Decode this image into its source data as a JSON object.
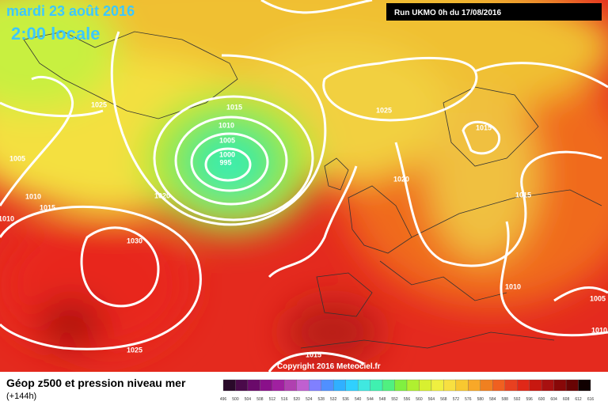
{
  "title": "mardi 23 août 2016",
  "subtitle": "2:00 locale",
  "run_info": "Run UKMO 0h du 17/08/2016",
  "copyright": "Copyright 2016 Meteociel.fr",
  "legend": {
    "title": "Géop z500 et pression niveau mer",
    "subtitle": "(+144h)",
    "scale_labels": [
      "496",
      "500",
      "504",
      "508",
      "512",
      "516",
      "520",
      "524",
      "528",
      "532",
      "536",
      "540",
      "544",
      "548",
      "552",
      "556",
      "560",
      "564",
      "568",
      "572",
      "576",
      "580",
      "584",
      "588",
      "592",
      "596",
      "600",
      "604",
      "608",
      "612",
      "616"
    ]
  },
  "isobar_labels": [
    "1025",
    "1005",
    "1010",
    "1015",
    "1010",
    "1030",
    "1025",
    "1015",
    "1010",
    "1005",
    "1000",
    "995",
    "1020",
    "1025",
    "1020",
    "1015",
    "1015",
    "1010",
    "1005",
    "1010",
    "1015"
  ]
}
